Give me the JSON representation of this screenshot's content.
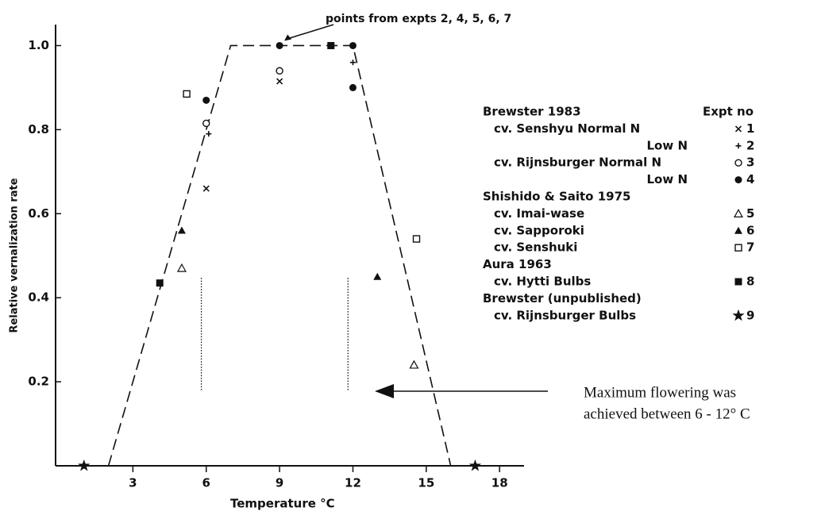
{
  "chart_data": {
    "type": "scatter",
    "xlabel": "Temperature °C",
    "ylabel": "Relative vernalization rate",
    "xlim": [
      0,
      19
    ],
    "ylim": [
      0,
      1.05
    ],
    "xticks": [
      3,
      6,
      9,
      12,
      15,
      18
    ],
    "yticks": [
      {
        "value": 0.2,
        "label": "0.2"
      },
      {
        "value": 0.4,
        "label": "0.4"
      },
      {
        "value": 0.6,
        "label": "0.6"
      },
      {
        "value": 0.8,
        "label": "0.8"
      },
      {
        "value": 1.0,
        "label": "1.0"
      }
    ],
    "color": "#111111",
    "line": {
      "x": [
        2,
        7,
        12,
        16
      ],
      "values": [
        0,
        1,
        1,
        0
      ],
      "style": "dashed"
    },
    "vlines": [
      5.8,
      11.8
    ],
    "vline_range": [
      0.18,
      0.45
    ],
    "legend_header": "Expt no",
    "groups": [
      {
        "title": "Brewster 1983",
        "series": [
          {
            "name": "cv. Senshyu Normal N",
            "expt": "1",
            "marker": "x",
            "x": [
              6,
              9
            ],
            "values": [
              0.66,
              0.915
            ]
          },
          {
            "name": "Low N",
            "expt": "2",
            "marker": "+",
            "x": [
              6.1,
              12
            ],
            "values": [
              0.79,
              0.96
            ]
          },
          {
            "name": "cv. Rijnsburger Normal N",
            "expt": "3",
            "marker": "o",
            "x": [
              6,
              9
            ],
            "values": [
              0.815,
              0.94
            ]
          },
          {
            "name": "Low N",
            "expt": "4",
            "marker": "dot",
            "x": [
              6,
              9,
              12,
              12
            ],
            "values": [
              0.87,
              1.0,
              0.9,
              1.0
            ]
          }
        ]
      },
      {
        "title": "Shishido & Saito 1975",
        "series": [
          {
            "name": "cv. Imai-wase",
            "expt": "5",
            "marker": "tri-open",
            "x": [
              5,
              14.5
            ],
            "values": [
              0.47,
              0.24
            ]
          },
          {
            "name": "cv. Sapporoki",
            "expt": "6",
            "marker": "tri",
            "x": [
              5,
              13
            ],
            "values": [
              0.56,
              0.45
            ]
          },
          {
            "name": "cv. Senshuki",
            "expt": "7",
            "marker": "sq-open",
            "x": [
              5.2,
              14.6
            ],
            "values": [
              0.885,
              0.54
            ]
          }
        ]
      },
      {
        "title": "Aura 1963",
        "series": [
          {
            "name": "cv. Hytti Bulbs",
            "expt": "8",
            "marker": "sq",
            "x": [
              4.1,
              11.1
            ],
            "values": [
              0.435,
              1.0
            ]
          }
        ]
      },
      {
        "title": "Brewster (unpublished)",
        "series": [
          {
            "name": "cv. Rijnsburger Bulbs",
            "expt": "9",
            "marker": "star",
            "x": [
              1,
              17
            ],
            "values": [
              0,
              0
            ]
          }
        ]
      }
    ],
    "annotations": [
      {
        "text": "points from expts 2, 4, 5, 6, 7",
        "x": 9.3,
        "y": 1.02
      },
      {
        "text": "Maximum flowering was",
        "x": 12.7,
        "y": 0.2
      },
      {
        "text": "achieved between 6 - 12° C",
        "x": 12.7,
        "y": 0.2
      }
    ]
  }
}
